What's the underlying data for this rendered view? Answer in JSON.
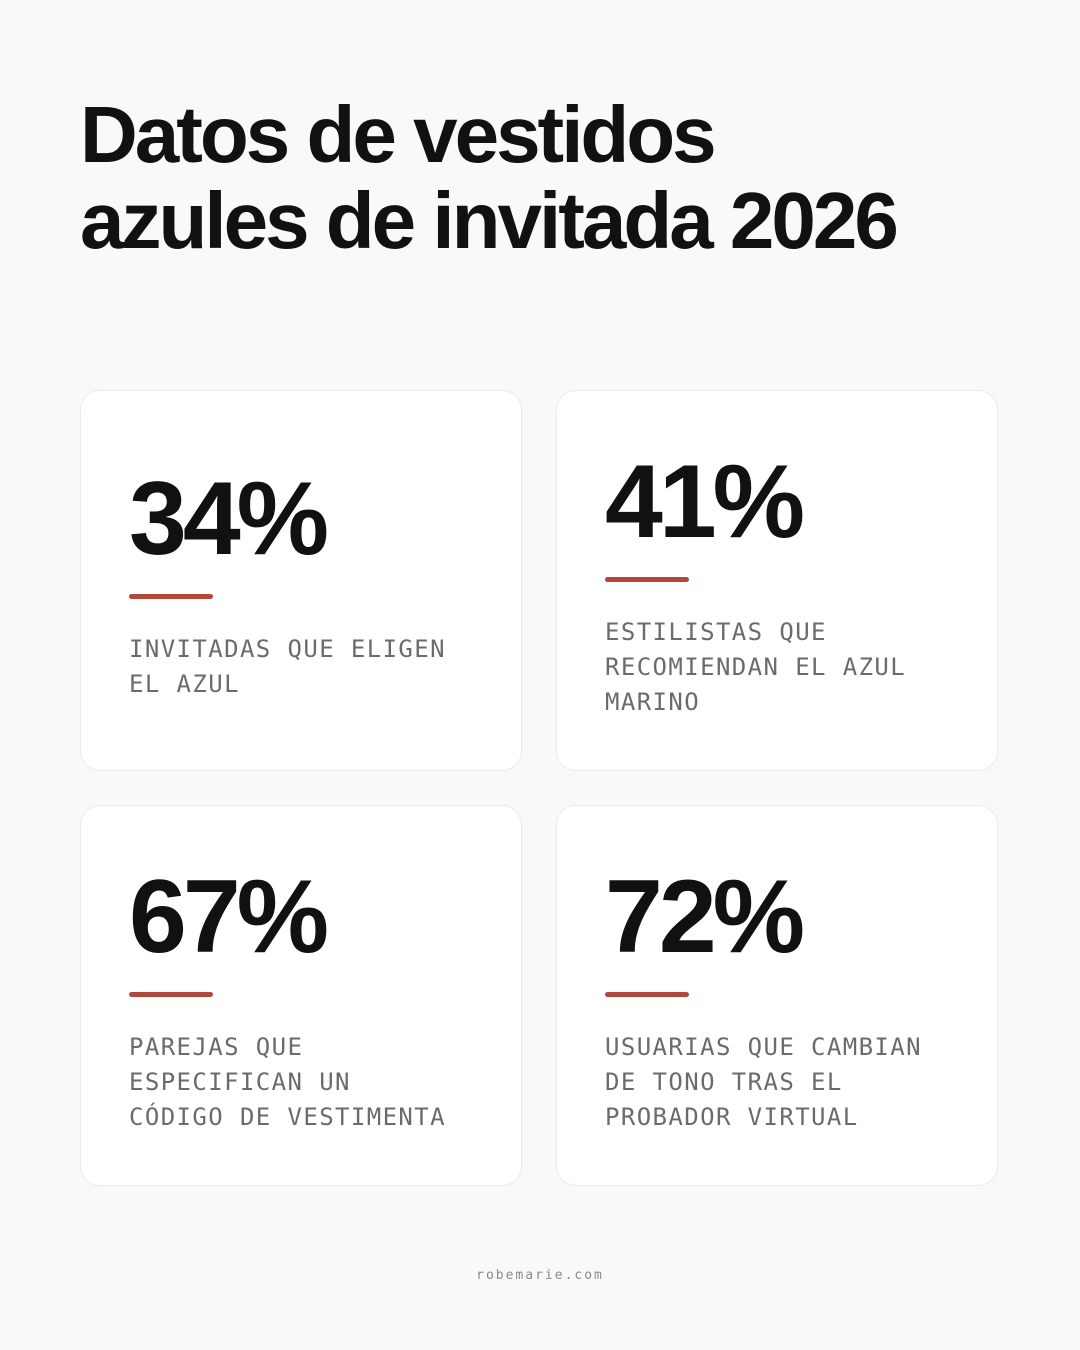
{
  "title": {
    "line1": "Datos de vestidos",
    "line2": "azules de invitada 2026"
  },
  "accent_color": "#b0483b",
  "cards": [
    {
      "value": "34%",
      "label_lines": [
        "INVITADAS QUE ELIGEN",
        "EL AZUL"
      ]
    },
    {
      "value": "41%",
      "label_lines": [
        "ESTILISTAS QUE",
        "RECOMIENDAN EL AZUL",
        "MARINO"
      ]
    },
    {
      "value": "67%",
      "label_lines": [
        "PAREJAS QUE",
        "ESPECIFICAN UN",
        "CÓDIGO DE VESTIMENTA"
      ]
    },
    {
      "value": "72%",
      "label_lines": [
        "USUARIAS QUE CAMBIAN",
        "DE TONO TRAS EL",
        "PROBADOR VIRTUAL"
      ]
    }
  ],
  "footer": "robemarie.com"
}
